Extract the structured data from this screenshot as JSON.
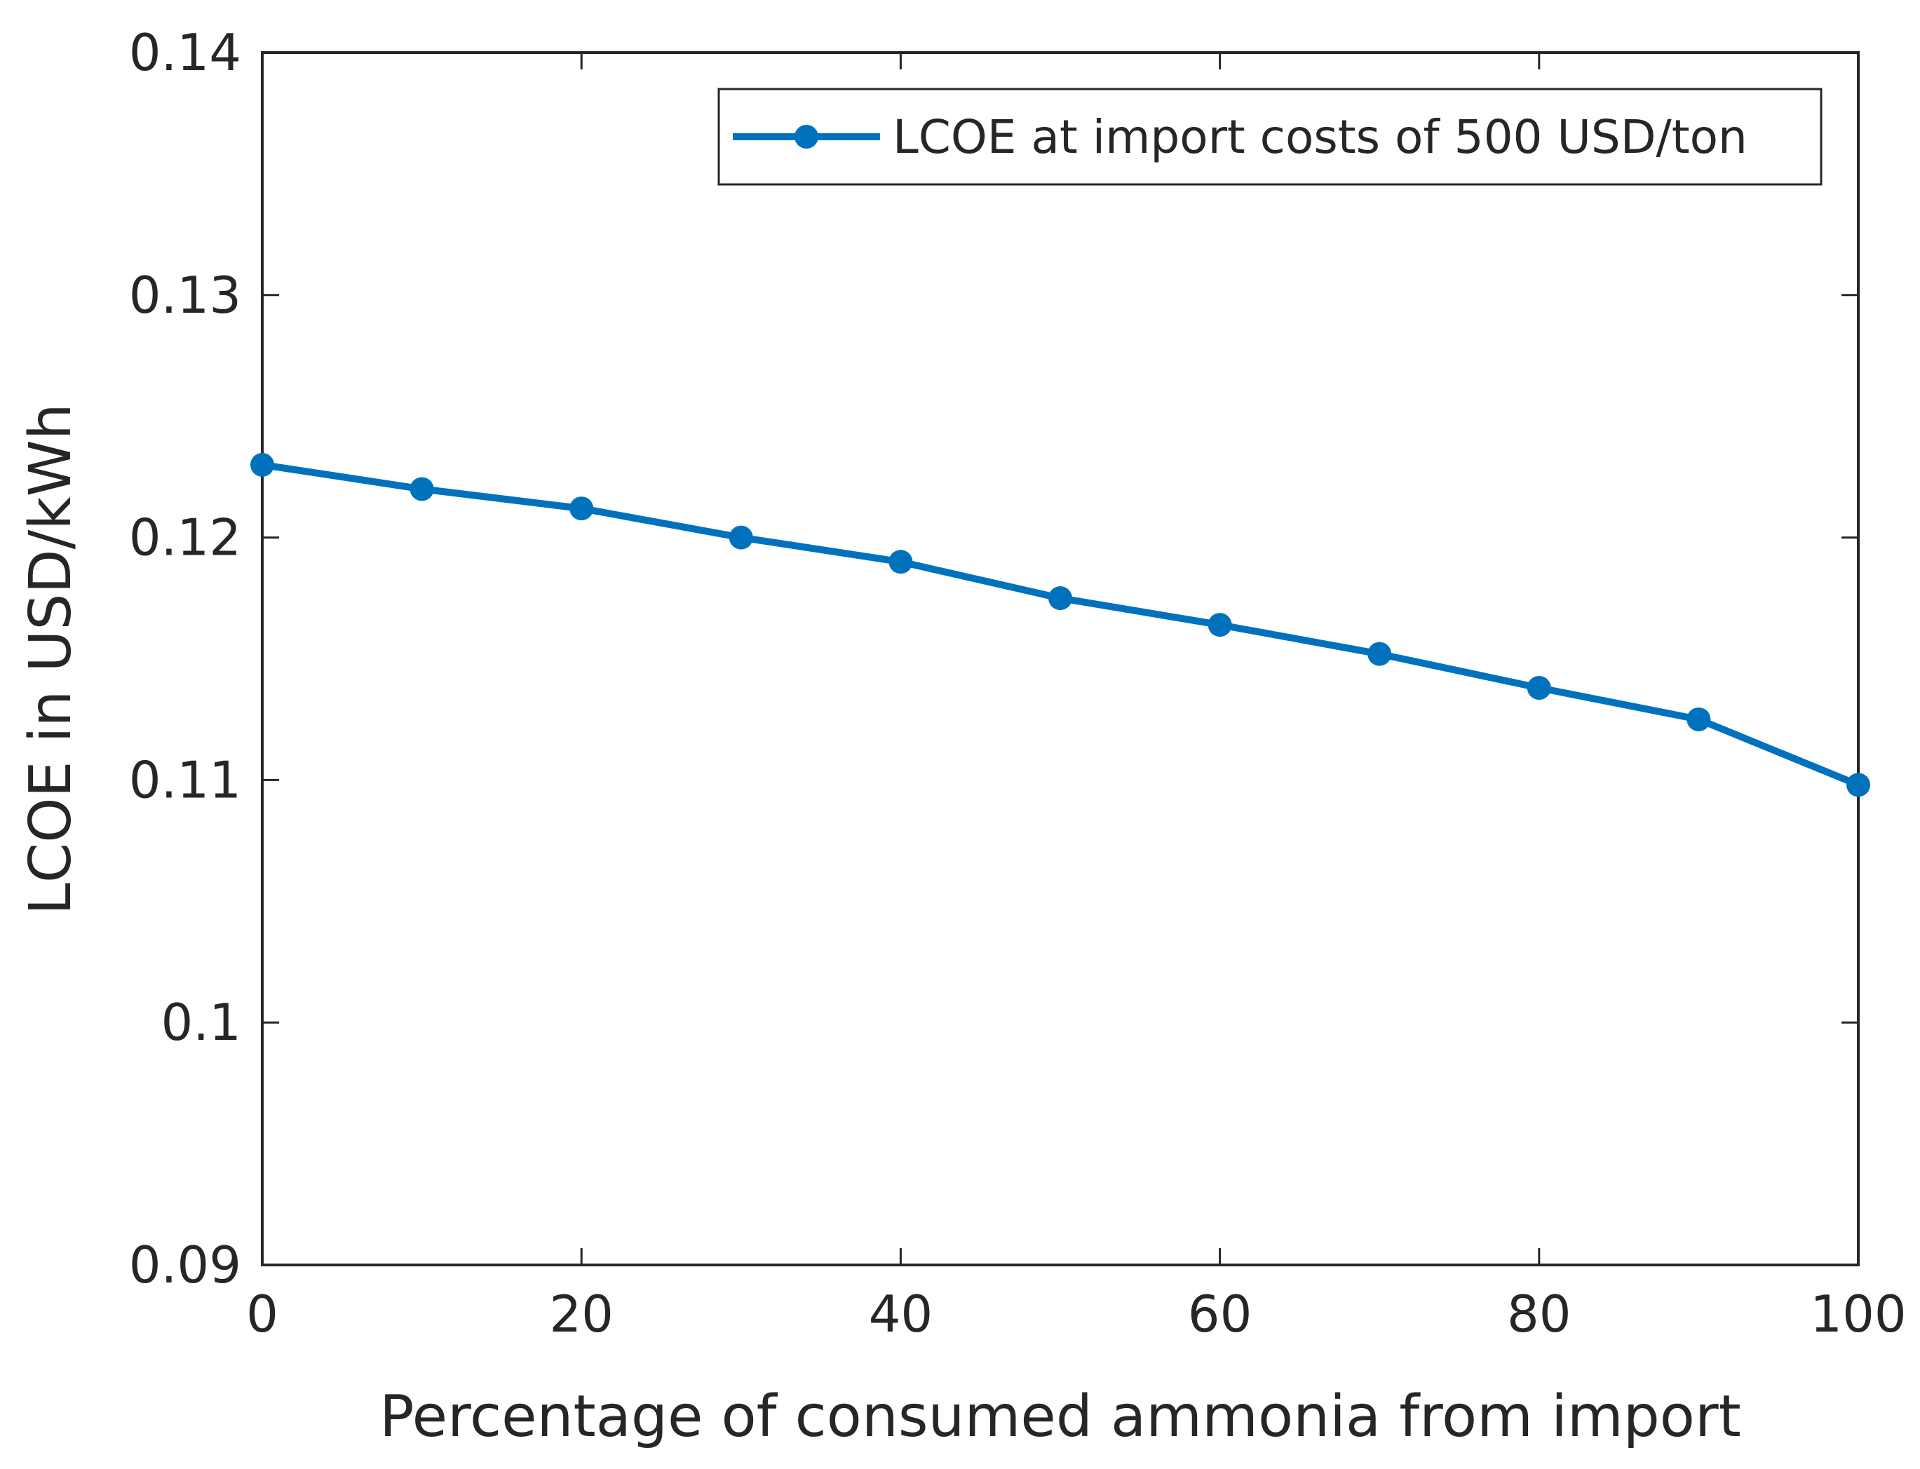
{
  "chart_data": {
    "type": "line",
    "title": "",
    "xlabel": "Percentage of consumed ammonia from import",
    "ylabel": "LCOE in USD/kWh",
    "xlim": [
      0,
      100
    ],
    "ylim": [
      0.09,
      0.14
    ],
    "xticks": [
      0,
      20,
      40,
      60,
      80,
      100
    ],
    "xtick_labels": [
      "0",
      "20",
      "40",
      "60",
      "80",
      "100"
    ],
    "yticks": [
      0.09,
      0.1,
      0.11,
      0.12,
      0.13,
      0.14
    ],
    "ytick_labels": [
      "0.09",
      "0.1",
      "0.11",
      "0.12",
      "0.13",
      "0.14"
    ],
    "grid": false,
    "legend_position": "top-right",
    "series": [
      {
        "name": "LCOE at import costs of 500 USD/ton",
        "color": "#0072BD",
        "marker": "circle",
        "x": [
          0,
          10,
          20,
          30,
          40,
          50,
          60,
          70,
          80,
          90,
          100
        ],
        "y": [
          0.123,
          0.122,
          0.1212,
          0.12,
          0.119,
          0.1175,
          0.1164,
          0.1152,
          0.1138,
          0.1125,
          0.1098
        ]
      }
    ]
  }
}
